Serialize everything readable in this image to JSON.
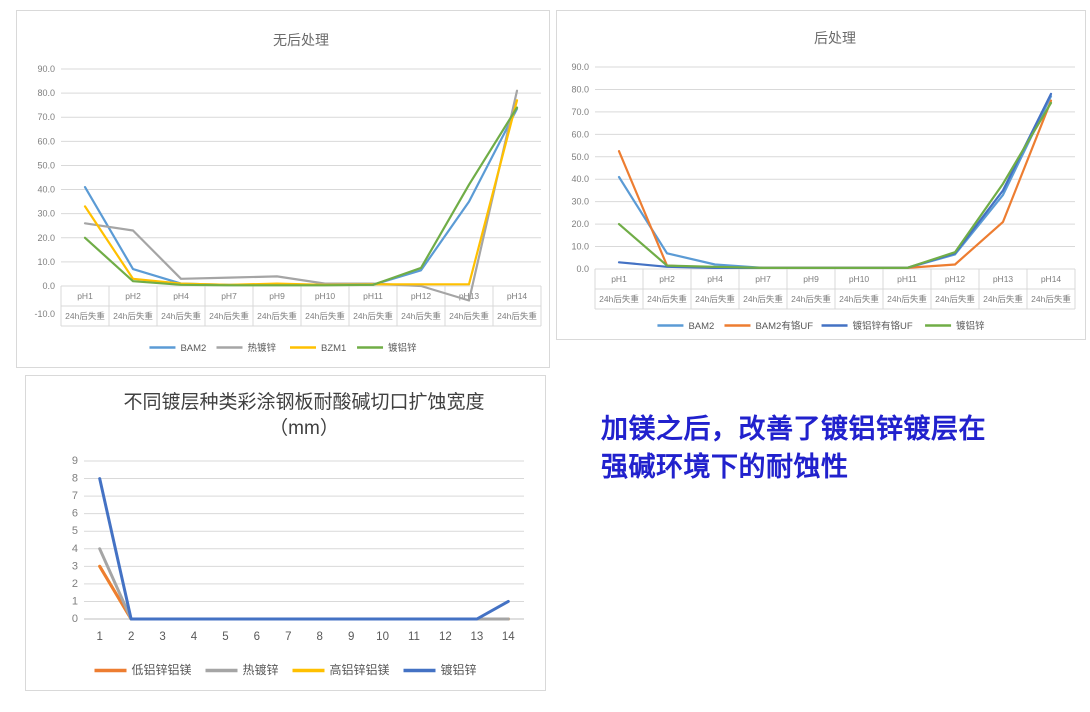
{
  "annotation": {
    "line1": "加镁之后，改善了镀铝锌镀层在",
    "line2": "强碱环境下的耐蚀性",
    "color": "#2121cd"
  },
  "chart_data": [
    {
      "id": "no-post-treatment",
      "type": "line",
      "title": "无后处理",
      "categories": [
        "pH1",
        "pH2",
        "pH4",
        "pH7",
        "pH9",
        "pH10",
        "pH11",
        "pH12",
        "pH13",
        "pH14"
      ],
      "category_sublabel": "24h后失重",
      "ylim": [
        -10,
        90
      ],
      "ytick_step": 10,
      "grid": true,
      "legend_position": "bottom",
      "series": [
        {
          "name": "BAM2",
          "color": "#5B9BD5",
          "values": [
            41,
            7,
            1,
            0.5,
            0.5,
            0.5,
            0.5,
            6.5,
            35,
            73.5
          ]
        },
        {
          "name": "热镀锌",
          "color": "#A5A5A5",
          "values": [
            26,
            23,
            3,
            3.5,
            4,
            1,
            1,
            0,
            -6,
            81
          ]
        },
        {
          "name": "BZM1",
          "color": "#FFC000",
          "values": [
            33,
            3,
            1,
            0.5,
            1,
            0.5,
            0.7,
            0.7,
            0.7,
            77
          ]
        },
        {
          "name": "镀铝锌",
          "color": "#70AD47",
          "values": [
            20,
            2,
            0.5,
            0.3,
            0.3,
            0.3,
            0.5,
            7.5,
            42,
            74
          ]
        }
      ]
    },
    {
      "id": "post-treatment",
      "type": "line",
      "title": "后处理",
      "categories": [
        "pH1",
        "pH2",
        "pH4",
        "pH7",
        "pH9",
        "pH10",
        "pH11",
        "pH12",
        "pH13",
        "pH14"
      ],
      "category_sublabel": "24h后失重",
      "ylim": [
        0,
        90
      ],
      "ytick_step": 10,
      "grid": true,
      "legend_position": "bottom",
      "series": [
        {
          "name": "BAM2",
          "color": "#5B9BD5",
          "values": [
            41,
            7,
            2,
            0.5,
            0.5,
            0.5,
            0.5,
            6.5,
            33,
            77
          ]
        },
        {
          "name": "BAM2有铬UF",
          "color": "#ED7D31",
          "values": [
            52.5,
            1.5,
            0.5,
            0.5,
            0.5,
            0.5,
            0.5,
            2,
            21,
            75
          ]
        },
        {
          "name": "镀铝锌有铬UF",
          "color": "#4472C4",
          "values": [
            3,
            1,
            0.5,
            0.5,
            0.5,
            0.5,
            0.5,
            7,
            35,
            78
          ]
        },
        {
          "name": "镀铝锌",
          "color": "#70AD47",
          "values": [
            20,
            1.5,
            1,
            0.5,
            0.5,
            0.5,
            0.5,
            7.5,
            38,
            74
          ]
        }
      ]
    },
    {
      "id": "cut-edge-corrosion-width",
      "type": "line",
      "title": "不同镀层种类彩涂钢板耐酸碱切口扩蚀宽度",
      "subtitle": "（mm）",
      "categories": [
        "1",
        "2",
        "3",
        "4",
        "5",
        "6",
        "7",
        "8",
        "9",
        "10",
        "11",
        "12",
        "13",
        "14"
      ],
      "ylim": [
        0,
        9
      ],
      "ytick_step": 1,
      "grid": true,
      "legend_position": "bottom",
      "series": [
        {
          "name": "低铝锌铝镁",
          "color": "#ED7D31",
          "values": [
            3,
            0,
            0,
            0,
            0,
            0,
            0,
            0,
            0,
            0,
            0,
            0,
            0,
            0
          ]
        },
        {
          "name": "热镀锌",
          "color": "#A5A5A5",
          "values": [
            4,
            0,
            0,
            0,
            0,
            0,
            0,
            0,
            0,
            0,
            0,
            0,
            0,
            0
          ]
        },
        {
          "name": "高铝锌铝镁",
          "color": "#FFC000",
          "values": [
            3,
            0,
            0,
            0,
            0,
            0,
            0,
            0,
            0,
            0,
            0,
            0,
            0,
            0
          ]
        },
        {
          "name": "镀铝锌",
          "color": "#4472C4",
          "values": [
            8,
            0,
            0,
            0,
            0,
            0,
            0,
            0,
            0,
            0,
            0,
            0,
            0,
            1
          ]
        }
      ]
    }
  ]
}
